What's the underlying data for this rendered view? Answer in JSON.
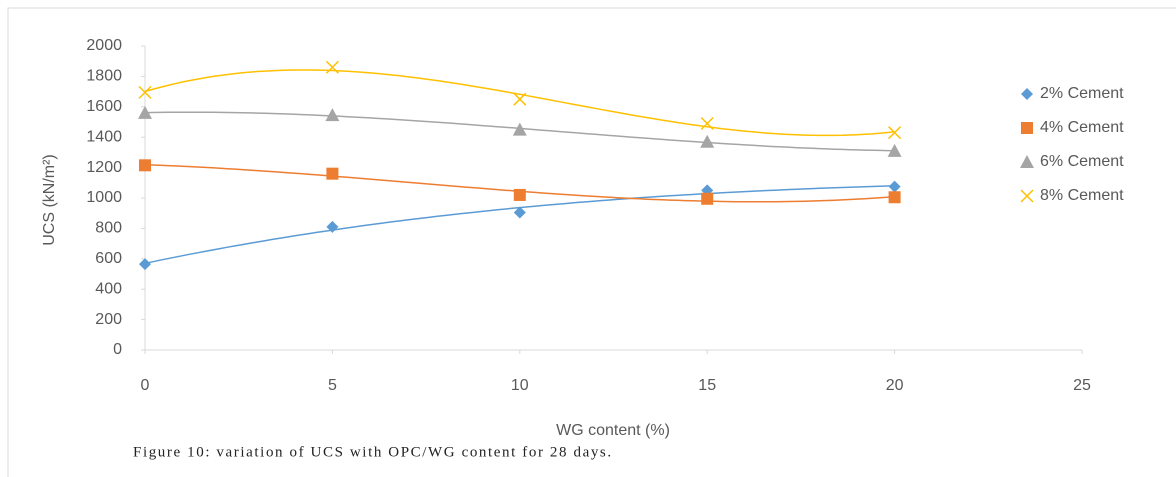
{
  "chart_data": {
    "type": "scatter",
    "caption": "Figure 10: variation of UCS with OPC/WG content for 28 days.",
    "xlabel": "WG content (%)",
    "ylabel": "UCS (kN/m²)",
    "x": [
      0,
      5,
      10,
      15,
      20
    ],
    "series": [
      {
        "name": "2% Cement",
        "color": "#5b9bd5",
        "marker": "diamond",
        "values": [
          565,
          810,
          905,
          1050,
          1075
        ]
      },
      {
        "name": "4% Cement",
        "color": "#ed7d31",
        "marker": "square",
        "values": [
          1215,
          1160,
          1020,
          995,
          1005
        ]
      },
      {
        "name": "6% Cement",
        "color": "#a5a5a5",
        "marker": "triangle",
        "values": [
          1560,
          1545,
          1450,
          1370,
          1310
        ]
      },
      {
        "name": "8% Cement",
        "color": "#ffc000",
        "marker": "x",
        "values": [
          1695,
          1860,
          1650,
          1490,
          1430
        ]
      }
    ],
    "trendline": "polynomial",
    "xlim": [
      0,
      25
    ],
    "xticks": [
      0,
      5,
      10,
      15,
      20,
      25
    ],
    "ylim": [
      0,
      2000
    ],
    "yticks": [
      0,
      200,
      400,
      600,
      800,
      1000,
      1200,
      1400,
      1600,
      1800,
      2000
    ],
    "grid": false,
    "legend": "right"
  }
}
